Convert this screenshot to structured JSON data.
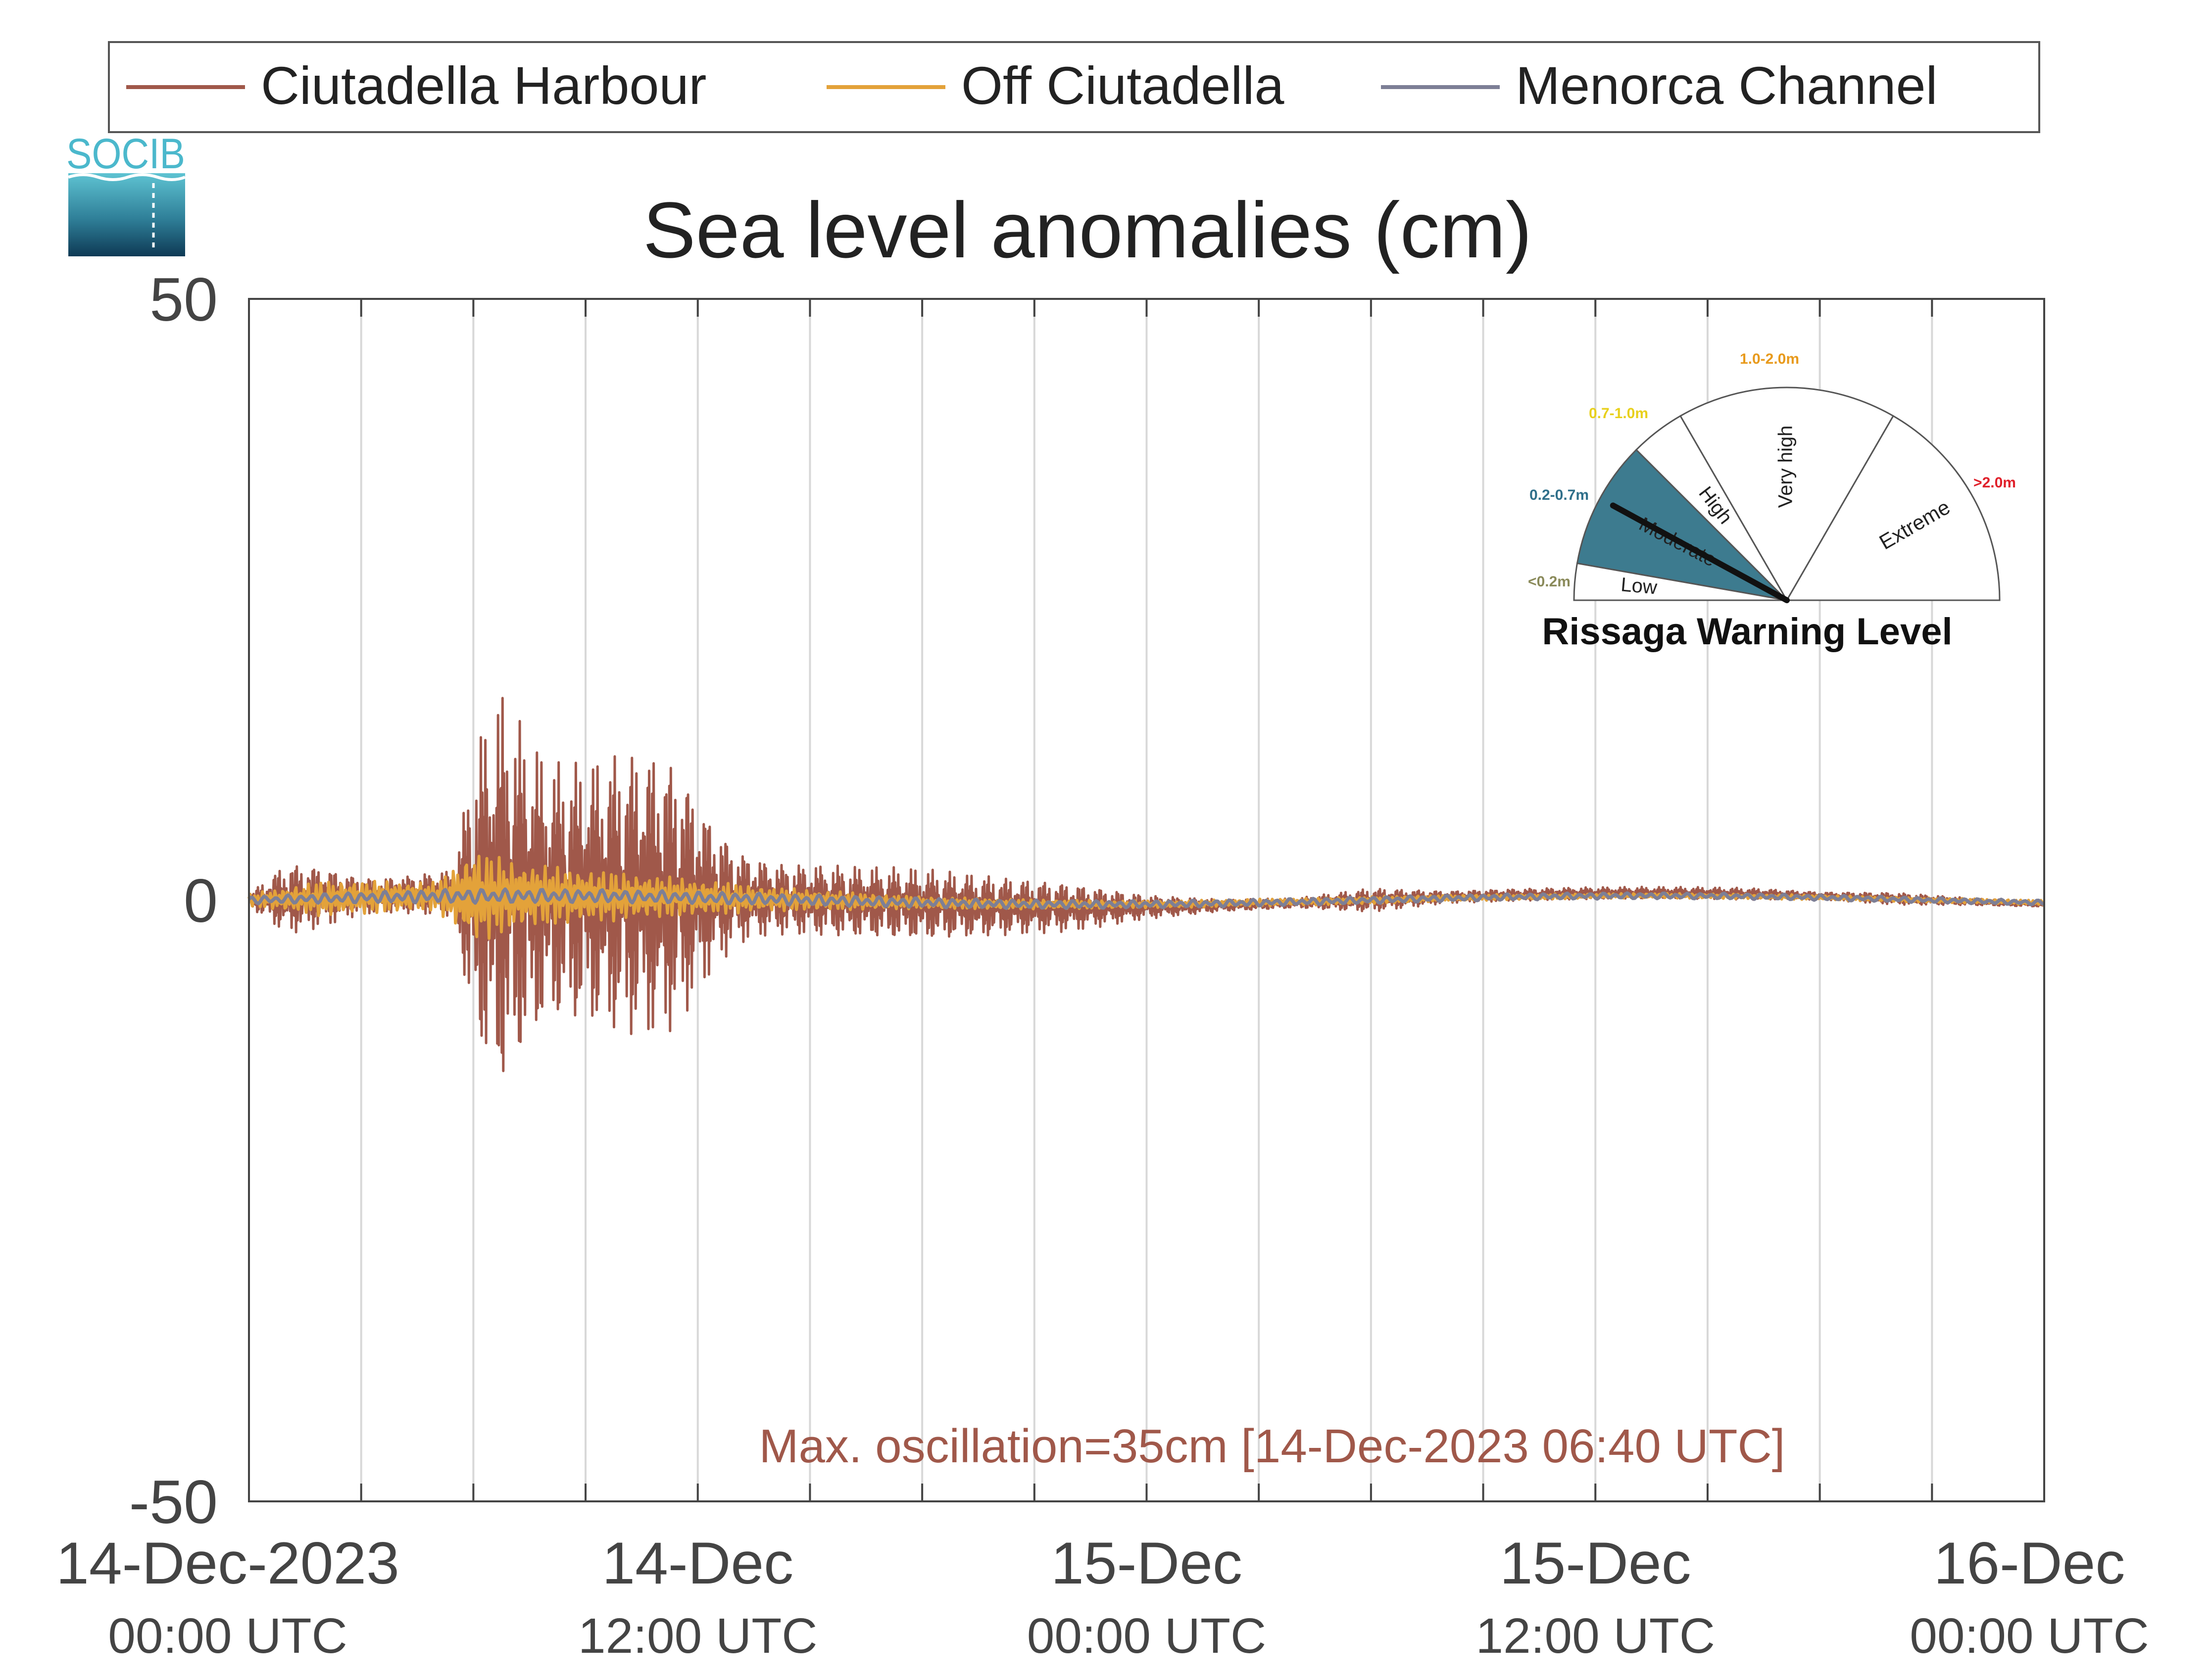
{
  "chart_data": {
    "type": "line",
    "title": "Sea level anomalies (cm)",
    "ylim": [
      -50,
      50
    ],
    "y_ticks": [
      "50",
      "0",
      "-50"
    ],
    "x_range_hours": [
      0,
      48
    ],
    "x_ticks": [
      {
        "date": "14-Dec-2023",
        "time": "00:00 UTC",
        "hour": 0
      },
      {
        "date": "14-Dec",
        "time": "12:00 UTC",
        "hour": 12
      },
      {
        "date": "15-Dec",
        "time": "00:00 UTC",
        "hour": 24
      },
      {
        "date": "15-Dec",
        "time": "12:00 UTC",
        "hour": 36
      },
      {
        "date": "16-Dec",
        "time": "00:00 UTC",
        "hour": 48
      }
    ],
    "grid_hours": [
      3,
      6,
      9,
      12,
      15,
      18,
      21,
      24,
      27,
      30,
      33,
      36,
      39,
      42,
      45
    ],
    "legend_position": "top",
    "series": [
      {
        "name": "Ciutadella Harbour",
        "color": "#a0584a",
        "envelope": {
          "hours": [
            0,
            1,
            2,
            3,
            4,
            5.5,
            6,
            6.7,
            7.5,
            8,
            9,
            10,
            11,
            11.5,
            12,
            13,
            14,
            16,
            18,
            20,
            22,
            24,
            26,
            28,
            30,
            32,
            34,
            36,
            38,
            40,
            42,
            44,
            46,
            48
          ],
          "amplitude_cm": [
            0.5,
            3,
            2.5,
            1.5,
            1.5,
            2,
            12,
            17,
            13,
            11,
            11,
            12,
            12,
            11,
            8,
            4,
            3,
            3,
            3,
            2.5,
            2,
            1,
            0.5,
            0.4,
            1,
            0.5,
            0.5,
            0.5,
            0.5,
            0.5,
            0.3,
            0.5,
            0.3,
            0.2
          ]
        }
      },
      {
        "name": "Off Ciutadella",
        "color": "#e3a23a",
        "envelope": {
          "hours": [
            0,
            2,
            5,
            6,
            7,
            8,
            10,
            12,
            14,
            18,
            24,
            30,
            36,
            48
          ],
          "amplitude_cm": [
            0.5,
            1.5,
            1.2,
            4,
            3,
            2.5,
            2,
            1.5,
            1,
            0.5,
            0.3,
            0.3,
            0.2,
            0.2
          ]
        }
      },
      {
        "name": "Menorca Channel",
        "color": "#7d7f96",
        "envelope": {
          "hours": [
            0,
            6,
            12,
            24,
            48
          ],
          "amplitude_cm": [
            0.3,
            0.6,
            0.5,
            0.3,
            0.2
          ]
        }
      }
    ],
    "annotation": "Max. oscillation=35cm [14-Dec-2023 06:40 UTC]",
    "annotation_color": "#a0584a"
  },
  "logo": {
    "text": "SOCIB",
    "color": "#4bb8cc"
  },
  "gauge": {
    "title": "Rissaga Warning Level",
    "active_level": "Moderate",
    "active_color": "#3d7b8f",
    "needle_value_fraction": 0.2,
    "levels": [
      {
        "name": "Low",
        "range": "<0.2m",
        "range_color": "#8a8a5a"
      },
      {
        "name": "Moderate",
        "range": "0.2-0.7m",
        "range_color": "#2f6f8a"
      },
      {
        "name": "High",
        "range": "0.7-1.0m",
        "range_color": "#e8d01c"
      },
      {
        "name": "Very high",
        "range": "1.0-2.0m",
        "range_color": "#e89a1c"
      },
      {
        "name": "Extreme",
        "range": ">2.0m",
        "range_color": "#e0202a"
      }
    ]
  }
}
